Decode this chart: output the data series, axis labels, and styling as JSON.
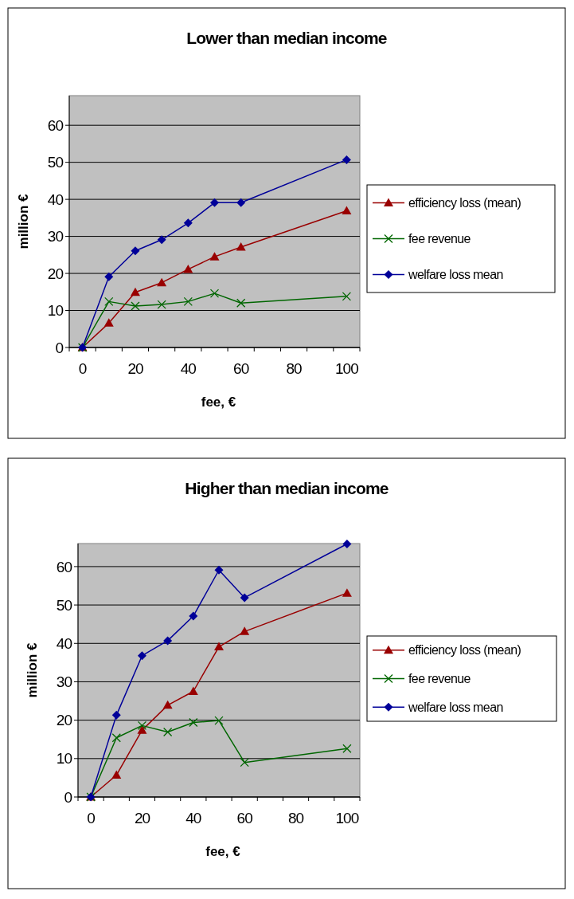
{
  "chart_data": [
    {
      "type": "line",
      "title": "Lower than median income",
      "xlabel": "fee, €",
      "ylabel": "million €",
      "x": [
        0,
        10,
        20,
        30,
        40,
        50,
        60,
        100
      ],
      "xlim": [
        -5,
        105
      ],
      "xticks": [
        0,
        {
          "value": 5,
          "label": null
        },
        {
          "value": 15,
          "label": null
        },
        20,
        {
          "value": 25,
          "label": null
        },
        {
          "value": 35,
          "label": null
        },
        40,
        {
          "value": 45,
          "label": null
        },
        {
          "value": 55,
          "label": null
        },
        60,
        {
          "value": 65,
          "label": null
        },
        {
          "value": 75,
          "label": null
        },
        80,
        {
          "value": 85,
          "label": null
        },
        {
          "value": 95,
          "label": null
        },
        100,
        {
          "value": 105,
          "label": null
        },
        {
          "value": -5,
          "label": null
        }
      ],
      "ylim": [
        0,
        68
      ],
      "yticks": [
        0,
        10,
        20,
        30,
        40,
        50,
        60
      ],
      "grid": "y",
      "legend": "right",
      "series": [
        {
          "name": "efficiency loss (mean)",
          "color": "#990000",
          "marker": "triangle",
          "values": [
            0,
            6.6,
            14.9,
            17.5,
            21.1,
            24.5,
            27.1,
            36.9
          ]
        },
        {
          "name": "fee revenue",
          "color": "#006600",
          "marker": "cross",
          "values": [
            0,
            12.4,
            11.2,
            11.6,
            12.4,
            14.6,
            12,
            13.8
          ]
        },
        {
          "name": "welfare loss mean",
          "color": "#000099",
          "marker": "diamond",
          "values": [
            0,
            19.1,
            26.1,
            29.1,
            33.6,
            39.1,
            39.1,
            50.7
          ]
        }
      ]
    },
    {
      "type": "line",
      "title": "Higher than median income",
      "xlabel": "fee, €",
      "ylabel": "million €",
      "x": [
        0,
        10,
        20,
        30,
        40,
        50,
        60,
        100
      ],
      "xlim": [
        -5,
        105
      ],
      "xticks": [
        0,
        {
          "value": 5,
          "label": null
        },
        {
          "value": 15,
          "label": null
        },
        20,
        {
          "value": 25,
          "label": null
        },
        {
          "value": 35,
          "label": null
        },
        40,
        {
          "value": 45,
          "label": null
        },
        {
          "value": 55,
          "label": null
        },
        60,
        {
          "value": 65,
          "label": null
        },
        {
          "value": 75,
          "label": null
        },
        80,
        {
          "value": 85,
          "label": null
        },
        {
          "value": 95,
          "label": null
        },
        100,
        {
          "value": 105,
          "label": null
        },
        {
          "value": -5,
          "label": null
        }
      ],
      "ylim": [
        0,
        66
      ],
      "yticks": [
        0,
        10,
        20,
        30,
        40,
        50,
        60
      ],
      "grid": "y",
      "legend": "right",
      "series": [
        {
          "name": "efficiency loss (mean)",
          "color": "#990000",
          "marker": "triangle",
          "values": [
            0,
            5.7,
            17.4,
            23.9,
            27.5,
            39.1,
            43.1,
            53.1
          ]
        },
        {
          "name": "fee revenue",
          "color": "#006600",
          "marker": "cross",
          "values": [
            0,
            15.4,
            18.6,
            16.9,
            19.4,
            19.9,
            9,
            12.6
          ]
        },
        {
          "name": "welfare loss mean",
          "color": "#000099",
          "marker": "diamond",
          "values": [
            0,
            21.3,
            36.8,
            40.7,
            47.1,
            59.1,
            51.9,
            65.9
          ]
        }
      ]
    }
  ]
}
